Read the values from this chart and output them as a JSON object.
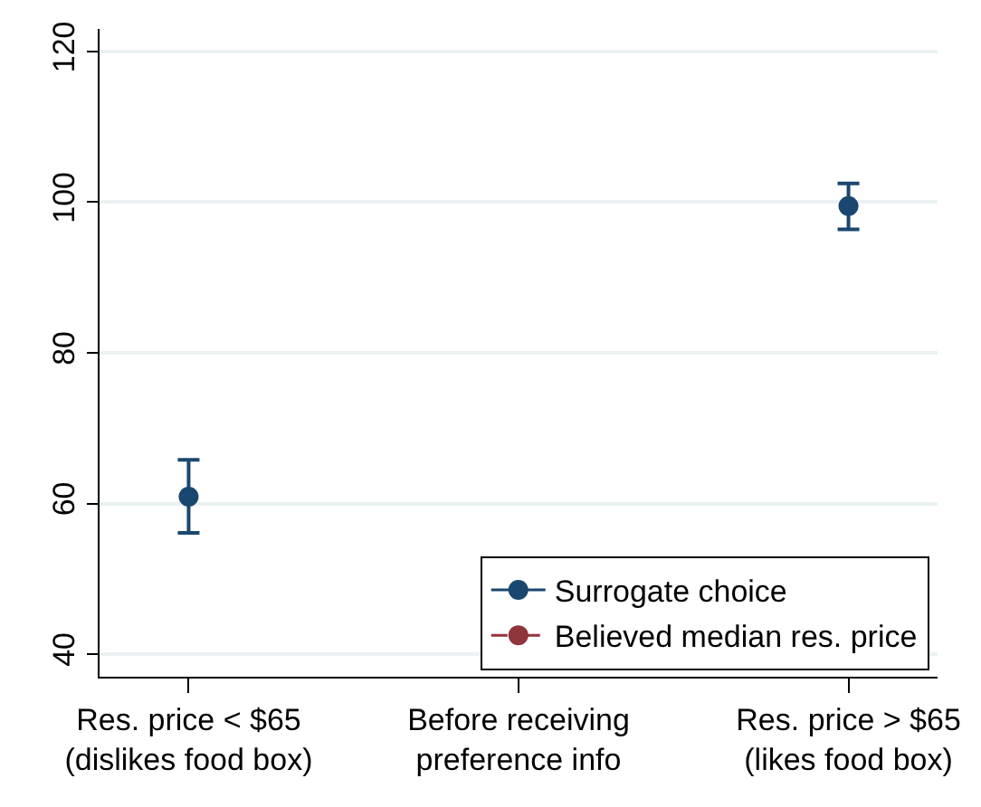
{
  "chart_data": {
    "type": "line",
    "categories": [
      "Res. price < $65\n(dislikes food box)",
      "Before receiving\npreference info",
      "Res. price > $65\n(likes food box)"
    ],
    "series": [
      {
        "name": "Surrogate choice",
        "color": "#1a476f",
        "values": [
          60.9,
          null,
          99.5
        ],
        "errors": [
          [
            56.1,
            65.8
          ],
          null,
          [
            96.4,
            102.5
          ]
        ],
        "line_style": "solid"
      },
      {
        "name": "Believed median res. price",
        "color": "#90353b",
        "values": [
          null,
          null,
          null
        ],
        "line_style": "dashed"
      }
    ],
    "ylim": [
      37,
      123
    ],
    "yticks": [
      40,
      60,
      80,
      100,
      120
    ],
    "grid": "y",
    "legend": "bottom right",
    "marker": "circle"
  }
}
